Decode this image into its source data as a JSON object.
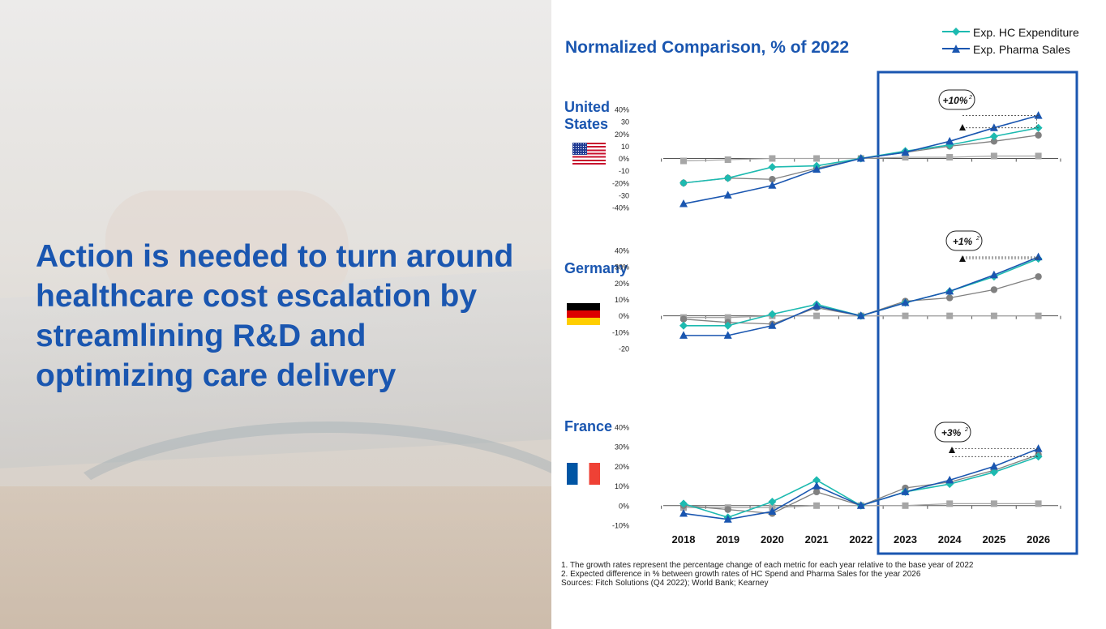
{
  "headline": "Action is needed to turn around healthcare cost escalation by streamlining R&D and optimizing care delivery",
  "chart_title": "Normalized Comparison, % of 2022",
  "legend": [
    {
      "label": "Exp. HC Expenditure",
      "color": "#1dbab0",
      "marker": "diamond"
    },
    {
      "label": "Exp. Pharma Sales",
      "color": "#1a56b0",
      "marker": "triangle"
    }
  ],
  "colors": {
    "accent": "#1a56b0",
    "hc": "#1dbab0",
    "pharma": "#1a56b0",
    "gray_dark": "#808080",
    "gray_light": "#a6a6a6"
  },
  "years": [
    "2018",
    "2019",
    "2020",
    "2021",
    "2022",
    "2023",
    "2024",
    "2025",
    "2026"
  ],
  "chart_data": [
    {
      "type": "line",
      "country": "United States",
      "x": [
        "2018",
        "2019",
        "2020",
        "2021",
        "2022",
        "2023",
        "2024",
        "2025",
        "2026"
      ],
      "ylim": [
        -40,
        40
      ],
      "yticks": [
        "40%",
        "30",
        "20%",
        "10",
        "0%",
        "-10",
        "-20%",
        "-30",
        "-40%"
      ],
      "series": [
        {
          "name": "Exp. HC Expenditure",
          "values": [
            -20,
            -16,
            -7,
            -6,
            0,
            6,
            11,
            18,
            25
          ]
        },
        {
          "name": "Exp. Pharma Sales",
          "values": [
            -37,
            -30,
            -22,
            -9,
            0,
            5,
            14,
            25,
            35
          ]
        },
        {
          "values": [
            -20,
            -16,
            -17,
            -8,
            0,
            5,
            10,
            14,
            19
          ]
        },
        {
          "values": [
            -2,
            -1,
            0,
            0,
            0,
            1,
            1,
            2,
            2
          ]
        }
      ],
      "annotation": "+10%",
      "annotation_superscript": "2"
    },
    {
      "type": "line",
      "country": "Germany",
      "x": [
        "2018",
        "2019",
        "2020",
        "2021",
        "2022",
        "2023",
        "2024",
        "2025",
        "2026"
      ],
      "ylim": [
        -20,
        40
      ],
      "yticks": [
        "40%",
        "30%",
        "20%",
        "10%",
        "0%",
        "-10%",
        "-20"
      ],
      "series": [
        {
          "name": "Exp. HC Expenditure",
          "values": [
            -6,
            -6,
            1,
            7,
            0,
            8,
            15,
            24,
            35
          ]
        },
        {
          "name": "Exp. Pharma Sales",
          "values": [
            -12,
            -12,
            -6,
            6,
            0,
            8,
            15,
            25,
            36
          ]
        },
        {
          "values": [
            -2,
            -4,
            -5,
            5,
            0,
            9,
            11,
            16,
            24
          ]
        },
        {
          "values": [
            -1,
            -1,
            0,
            0,
            0,
            0,
            0,
            0,
            0
          ]
        }
      ],
      "annotation": "+1%",
      "annotation_superscript": "2"
    },
    {
      "type": "line",
      "country": "France",
      "x": [
        "2018",
        "2019",
        "2020",
        "2021",
        "2022",
        "2023",
        "2024",
        "2025",
        "2026"
      ],
      "ylim": [
        -10,
        40
      ],
      "yticks": [
        "40%",
        "30%",
        "20%",
        "10%",
        "0%",
        "-10%"
      ],
      "series": [
        {
          "name": "Exp. HC Expenditure",
          "values": [
            1,
            -6,
            2,
            13,
            0,
            7,
            11,
            17,
            25
          ]
        },
        {
          "name": "Exp. Pharma Sales",
          "values": [
            -4,
            -7,
            -3,
            10,
            0,
            7,
            13,
            20,
            29
          ]
        },
        {
          "values": [
            0,
            -2,
            -4,
            7,
            0,
            9,
            12,
            18,
            26
          ]
        },
        {
          "values": [
            -1,
            -1,
            -1,
            0,
            0,
            0,
            1,
            1,
            1
          ]
        }
      ],
      "annotation": "+3%",
      "annotation_superscript": "2"
    }
  ],
  "countries": {
    "us": "United States",
    "de": "Germany",
    "fr": "France"
  },
  "footnotes": [
    "1. The growth rates represent the percentage change of each metric for each year relative to the base year of 2022",
    "2. Expected difference in % between growth rates of HC Spend and Pharma Sales for the year 2026",
    "Sources: Fitch Solutions (Q4 2022); World Bank; Kearney"
  ]
}
